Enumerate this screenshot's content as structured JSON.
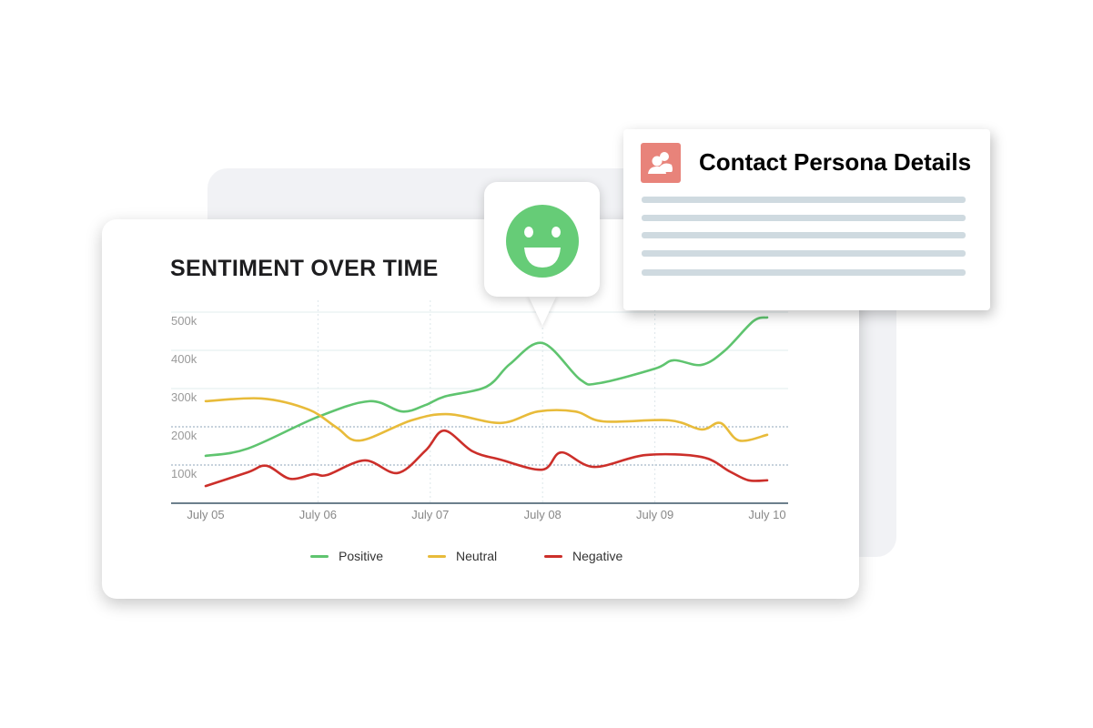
{
  "colors": {
    "positive": "#5fc46f",
    "neutral": "#e8bb3a",
    "negative": "#cc2f2a",
    "smiley": "#66cc77",
    "persona_icon": "#e8837a"
  },
  "chart_data": {
    "type": "line",
    "title": "SENTIMENT OVER TIME",
    "xlabel": "",
    "ylabel": "",
    "x_ticks": [
      "July 05",
      "July 06",
      "July 07",
      "July 08",
      "July 09",
      "July 10"
    ],
    "y_ticks": [
      "100k",
      "200k",
      "300k",
      "400k",
      "500k"
    ],
    "ylim": [
      0,
      500000
    ],
    "grid": true,
    "legend_position": "bottom",
    "series": [
      {
        "name": "Positive",
        "points": [
          [
            "July 05 00:00",
            124000
          ],
          [
            "July 05 09:00",
            143000
          ],
          [
            "July 06 00:00",
            226000
          ],
          [
            "July 06 11:00",
            267000
          ],
          [
            "July 06 18:00",
            240000
          ],
          [
            "July 06 23:00",
            257000
          ],
          [
            "July 07 03:00",
            279000
          ],
          [
            "July 07 12:00",
            305000
          ],
          [
            "July 07 17:00",
            364000
          ],
          [
            "July 08 00:00",
            419000
          ],
          [
            "July 08 08:00",
            324000
          ],
          [
            "July 08 12:00",
            314000
          ],
          [
            "July 09 00:00",
            352000
          ],
          [
            "July 09 04:00",
            374000
          ],
          [
            "July 09 10:00",
            362000
          ],
          [
            "July 09 15:00",
            400000
          ],
          [
            "July 09 21:00",
            476000
          ],
          [
            "July 10 00:00",
            486000
          ]
        ]
      },
      {
        "name": "Neutral",
        "points": [
          [
            "July 05 00:00",
            267000
          ],
          [
            "July 05 12:00",
            274000
          ],
          [
            "July 05 22:00",
            245000
          ],
          [
            "July 06 04:00",
            198000
          ],
          [
            "July 06 09:00",
            164000
          ],
          [
            "July 06 20:00",
            217000
          ],
          [
            "July 07 04:00",
            233000
          ],
          [
            "July 07 15:00",
            210000
          ],
          [
            "July 07 23:00",
            240000
          ],
          [
            "July 08 07:00",
            240000
          ],
          [
            "July 08 13:00",
            214000
          ],
          [
            "July 09 03:00",
            217000
          ],
          [
            "July 09 10:00",
            193000
          ],
          [
            "July 09 14:00",
            210000
          ],
          [
            "July 09 18:00",
            164000
          ],
          [
            "July 10 00:00",
            179000
          ]
        ]
      },
      {
        "name": "Negative",
        "points": [
          [
            "July 05 00:00",
            45000
          ],
          [
            "July 05 09:00",
            81000
          ],
          [
            "July 05 13:00",
            98000
          ],
          [
            "July 05 18:00",
            64000
          ],
          [
            "July 05 23:00",
            76000
          ],
          [
            "July 06 02:00",
            74000
          ],
          [
            "July 06 10:00",
            112000
          ],
          [
            "July 06 17:00",
            79000
          ],
          [
            "July 06 23:00",
            138000
          ],
          [
            "July 07 03:00",
            190000
          ],
          [
            "July 07 09:00",
            136000
          ],
          [
            "July 07 15:00",
            114000
          ],
          [
            "July 08 00:00",
            88000
          ],
          [
            "July 08 04:00",
            133000
          ],
          [
            "July 08 11:00",
            95000
          ],
          [
            "July 08 22:00",
            126000
          ],
          [
            "July 09 10:00",
            121000
          ],
          [
            "July 09 16:00",
            83000
          ],
          [
            "July 09 20:00",
            60000
          ],
          [
            "July 10 00:00",
            60000
          ]
        ]
      }
    ]
  },
  "bubble": {
    "icon": "smiley-icon"
  },
  "persona": {
    "title": "Contact Persona Details",
    "icon": "users-icon"
  }
}
